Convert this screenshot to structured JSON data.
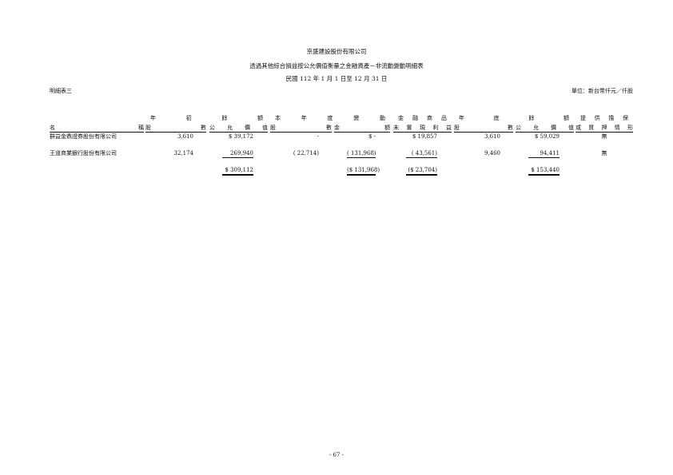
{
  "header": {
    "company": "京盛建設股份有限公司",
    "title": "透過其他綜合損益按公允價值衡量之金融資產－非流動變動明細表",
    "period": "民國 112 年 1 月 1 日至 12 月 31 日",
    "schedule": "明細表三",
    "unit": "單位：新台幣仟元／仟股"
  },
  "table": {
    "header_top": [
      "年初餘額",
      "本年度變動",
      "金融商品",
      "年底餘額",
      "提供擔保"
    ],
    "header_bottom": [
      "名稱",
      "股數",
      "公允價值",
      "股數",
      "金額",
      "未實現利益",
      "股數",
      "公允價值",
      "或質押情形"
    ],
    "rows": [
      [
        "群益金鼎證券股份有限公司",
        "3,610",
        "$ 39,172",
        "-",
        "$ -",
        "$ 19,857",
        "3,610",
        "$ 59,029",
        "無"
      ],
      [
        "王道商業銀行股份有限公司",
        "32,174",
        "269,940",
        "( 22,714)",
        "( 131,968)",
        "( 43,561)",
        "9,460",
        "94,411",
        "無"
      ]
    ],
    "total": [
      "$ 309,112",
      "($ 131,968)",
      "($ 23,704)",
      "$ 153,440"
    ]
  },
  "footer": "- 67 -"
}
